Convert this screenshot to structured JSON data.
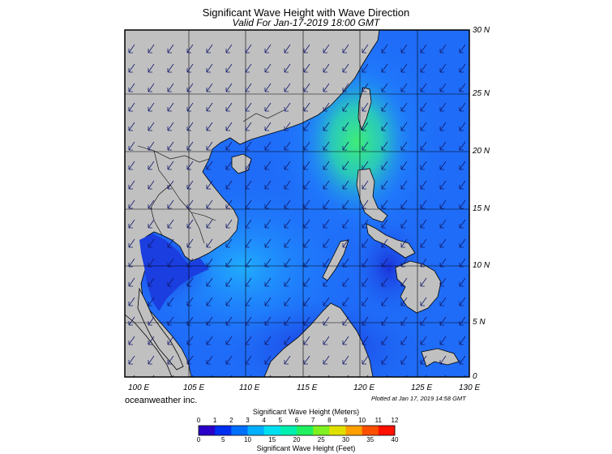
{
  "header": {
    "title": "Significant Wave Height with Wave Direction",
    "subtitle": "Valid For Jan-17-2019 18:00 GMT"
  },
  "map": {
    "lon_range": [
      100,
      130
    ],
    "lat_range": [
      0,
      30
    ],
    "lon_labels": [
      "100 E",
      "105 E",
      "110 E",
      "115 E",
      "120 E",
      "125 E",
      "130 E"
    ],
    "lat_labels": [
      "30 N",
      "25 N",
      "20 N",
      "15 N",
      "10 N",
      "5 N",
      "0"
    ],
    "land_color": "#c0c0c0",
    "low_wave_color": "#1f3fe6",
    "mid_wave_color": "#1f78ff",
    "high_wave_color": "#2ee0a0",
    "peak_wave_color": "#40f070",
    "arrow_direction": "from northeast toward southwest"
  },
  "footer": {
    "credit": "oceanweather inc.",
    "plotted": "Plotted at Jan 17, 2019 14:58 GMT"
  },
  "colorbar": {
    "meters_label": "Significant Wave Height (Meters)",
    "feet_label": "Significant Wave Height (Feet)",
    "meters_ticks": [
      "0",
      "1",
      "2",
      "3",
      "4",
      "5",
      "6",
      "7",
      "8",
      "9",
      "10",
      "11",
      "12"
    ],
    "feet_ticks": [
      "0",
      "5",
      "10",
      "15",
      "20",
      "25",
      "30",
      "35",
      "40"
    ],
    "colors": [
      "#2a00c8",
      "#0030f0",
      "#0070ff",
      "#00b0ff",
      "#00e0f0",
      "#00f0b0",
      "#20f060",
      "#80f020",
      "#e0e000",
      "#ffa000",
      "#ff5000",
      "#ff1000"
    ]
  }
}
